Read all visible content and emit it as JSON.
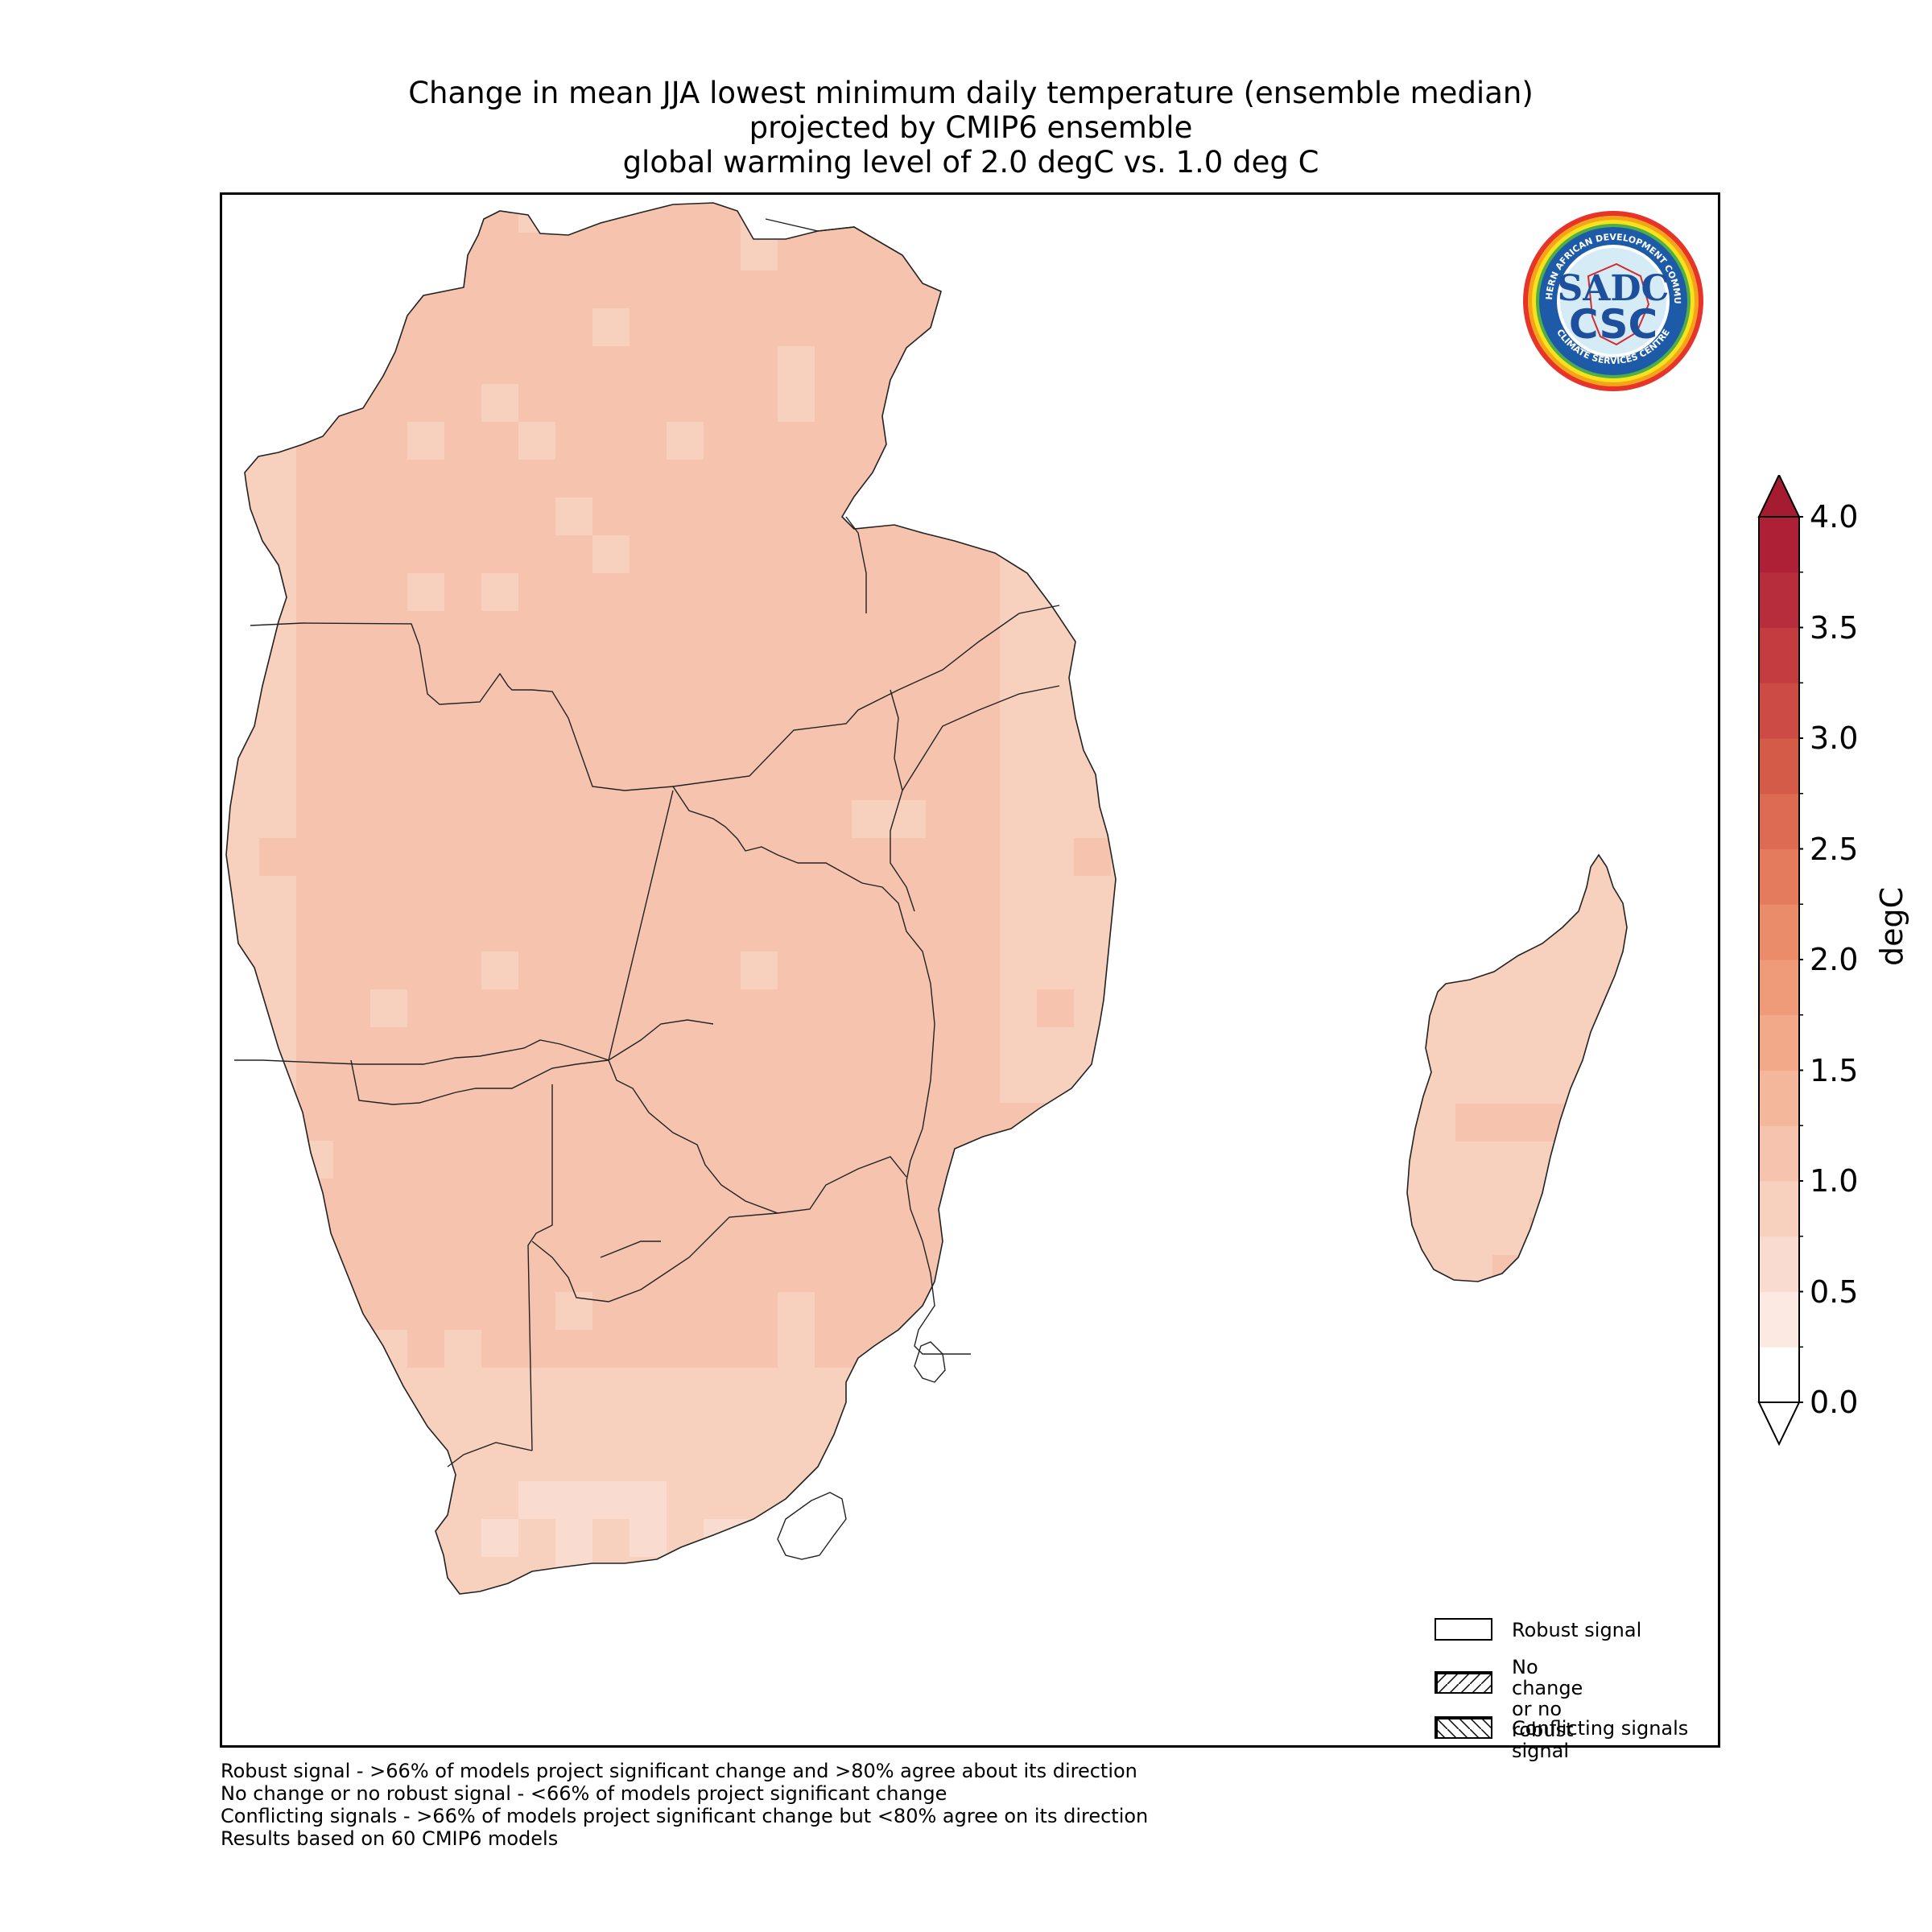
{
  "title": {
    "line1": "Change in mean JJA lowest minimum daily temperature (ensemble median)",
    "line2": "projected by CMIP6 ensemble",
    "line3": "global warming level of 2.0 degC vs. 1.0 deg C"
  },
  "logo": {
    "ring_text_top": "SOUTHERN AFRICAN DEVELOPMENT COMMUNITY",
    "ring_text_bottom": "CLIMATE SERVICES CENTRE",
    "mark_top": "SADC",
    "mark_bottom": "CSC"
  },
  "legend": {
    "items": [
      {
        "label": "Robust signal",
        "hatch": "none"
      },
      {
        "label": "No change\nor no robust signal",
        "hatch": "forward"
      },
      {
        "label": "Conflicting signals",
        "hatch": "backward"
      }
    ]
  },
  "notes": [
    "Robust signal - >66% of models project significant change and >80% agree about its direction",
    "No change or no robust signal - <66% of models project significant change",
    "Conflicting signals - >66% of models project significant change but <80% agree on its direction",
    "Results based on 60 CMIP6 models"
  ],
  "colorbar": {
    "label": "degC",
    "min": 0.0,
    "max": 4.0,
    "ticks": [
      "0.0",
      "0.5",
      "1.0",
      "1.5",
      "2.0",
      "2.5",
      "3.0",
      "3.5",
      "4.0"
    ],
    "extend": "both",
    "colors": [
      "#ffffff",
      "#fbe9e2",
      "#f9dccf",
      "#f8d0be",
      "#f6c4ae",
      "#f4b79c",
      "#f2a98a",
      "#ef9b79",
      "#ea8b6a",
      "#e47b5c",
      "#dd6b51",
      "#d55b49",
      "#cc4b44",
      "#c33c40",
      "#b82d3b",
      "#ad2036"
    ],
    "over_color": "#a51c30"
  },
  "map_data": {
    "region": "Southern Africa (SADC)",
    "value_range_shown": [
      0.5,
      1.5
    ],
    "pattern": "about 1.0-1.25 degC over central continent, 0.75-1.0 degC near coasts, Madagascar and South Africa"
  }
}
